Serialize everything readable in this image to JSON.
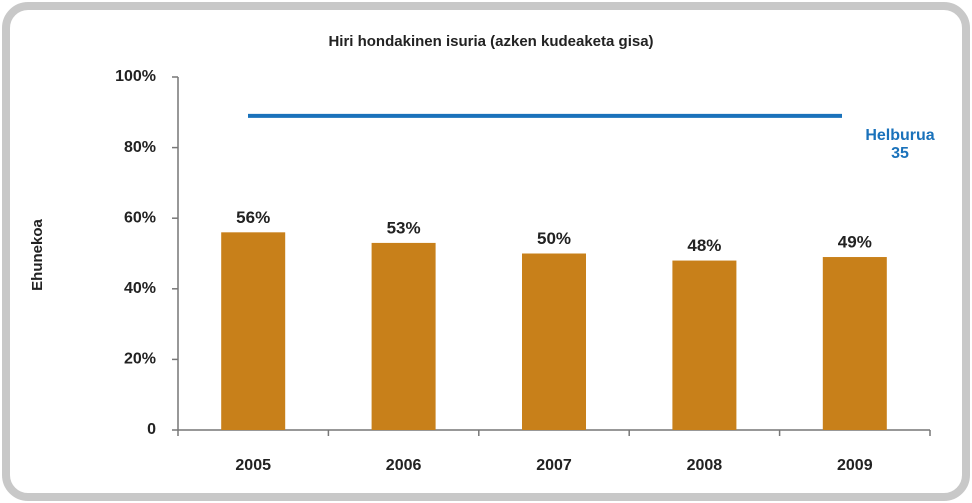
{
  "chart_data": {
    "type": "bar",
    "title": "Hiri hondakinen isuria (azken kudeaketa gisa)",
    "ylabel": "Ehunekoa",
    "categories": [
      "2005",
      "2006",
      "2007",
      "2008",
      "2009"
    ],
    "values": [
      56,
      53,
      50,
      48,
      49
    ],
    "value_labels": [
      "56%",
      "53%",
      "50%",
      "48%",
      "49%"
    ],
    "color": "#c8801a",
    "ylim": [
      0,
      100
    ],
    "yticks": [
      0,
      {
        "value": 20,
        "label": "20%"
      },
      {
        "value": 40,
        "label": "40%"
      },
      {
        "value": 60,
        "label": "60%"
      },
      {
        "value": 80,
        "label": "80%"
      },
      {
        "value": 100,
        "label": "100%"
      }
    ],
    "target": {
      "value": 89,
      "color": "#1a72bb",
      "label": [
        "Helburua",
        "35"
      ]
    }
  }
}
